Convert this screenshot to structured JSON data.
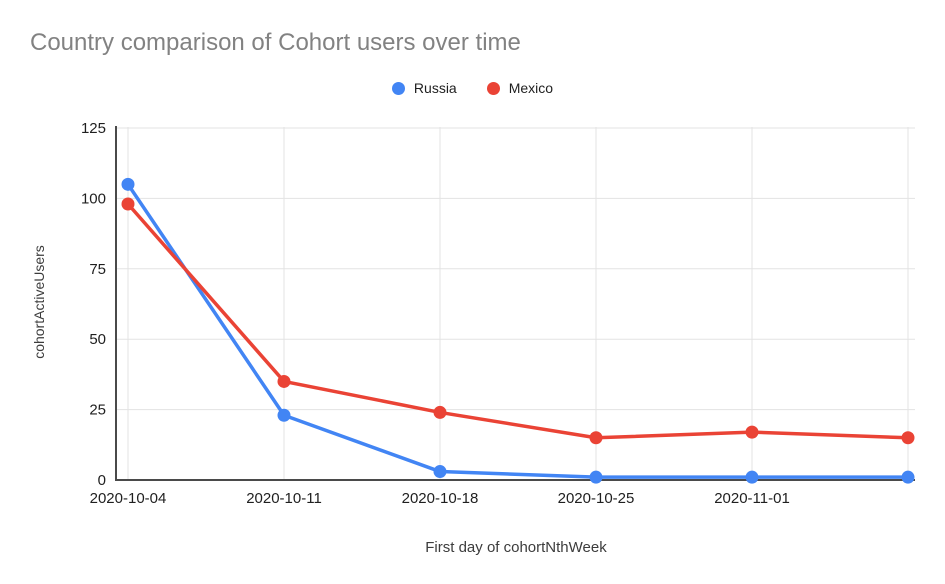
{
  "chart_data": {
    "type": "line",
    "title": "Country comparison of Cohort users over time",
    "xlabel": "First day of cohortNthWeek",
    "ylabel": "cohortActiveUsers",
    "categories": [
      "2020-10-04",
      "2020-10-11",
      "2020-10-18",
      "2020-10-25",
      "2020-11-01",
      ""
    ],
    "series": [
      {
        "name": "Russia",
        "color": "#4285F4",
        "values": [
          105,
          23,
          3,
          1,
          1,
          1
        ]
      },
      {
        "name": "Mexico",
        "color": "#EA4335",
        "values": [
          98,
          35,
          24,
          15,
          17,
          15
        ]
      }
    ],
    "y_ticks": [
      0,
      25,
      50,
      75,
      100,
      125
    ],
    "y_tick_labels": [
      "0",
      "25",
      "50",
      "75",
      "100",
      "125"
    ],
    "ylim": [
      0,
      125
    ],
    "grid": true,
    "legend_position": "top"
  },
  "colors": {
    "background": "#ffffff",
    "title_text": "#828282",
    "tick_text": "#1f1f1f",
    "axis_title_text": "#3c3c3c",
    "grid_line": "#e3e3e3",
    "axis_line": "#4a4a4a",
    "russia": "#4285F4",
    "mexico": "#EA4335"
  }
}
